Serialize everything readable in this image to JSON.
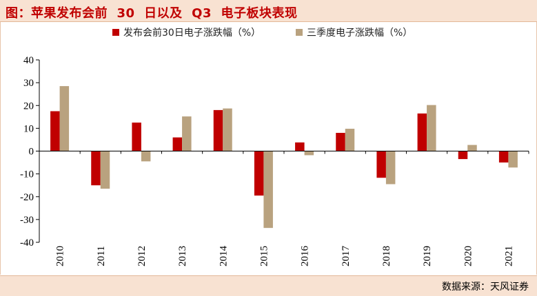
{
  "header": {
    "title": "图：苹果发布会前  30  日以及  Q3  电子板块表现"
  },
  "footer": {
    "source": "数据来源：天风证券"
  },
  "colors": {
    "series1": "#c00000",
    "series2": "#b9a27f",
    "header_bg": "#f8e2d2"
  },
  "chart_data": {
    "type": "bar",
    "title": "",
    "xlabel": "",
    "ylabel": "",
    "ylim": [
      -40,
      40
    ],
    "yticks": [
      40,
      30,
      20,
      10,
      0,
      -10,
      -20,
      -30,
      -40
    ],
    "legend_position": "top-center",
    "categories": [
      "2010",
      "2011",
      "2012",
      "2013",
      "2014",
      "2015",
      "2016",
      "2017",
      "2018",
      "2019",
      "2020",
      "2021"
    ],
    "series": [
      {
        "name": "发布会前30日电子涨跌幅（%）",
        "color": "#c00000",
        "values": [
          17.5,
          -15.0,
          12.5,
          6.0,
          18.0,
          -19.5,
          3.8,
          8.0,
          -11.7,
          16.5,
          -3.5,
          -5.0
        ]
      },
      {
        "name": "三季度电子涨跌幅（%）",
        "color": "#b9a27f",
        "values": [
          28.5,
          -16.5,
          -4.5,
          15.2,
          18.7,
          -33.7,
          -1.8,
          9.8,
          -14.5,
          20.2,
          2.7,
          -7.2
        ]
      }
    ]
  }
}
